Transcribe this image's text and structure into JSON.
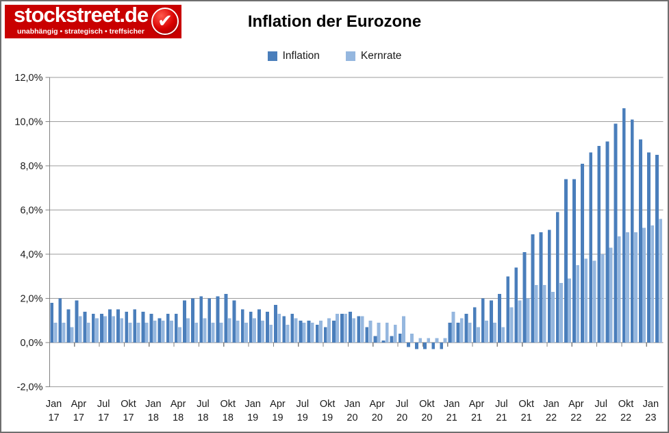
{
  "page": {
    "background": "#ffffff",
    "border_color": "#6e6e6e"
  },
  "logo": {
    "brand": "stockstreet.de",
    "tagline": "unabhängig • strategisch • treffsicher",
    "background_color": "#c90000",
    "check_icon": "✔"
  },
  "header": {
    "title": "Inflation der Eurozone"
  },
  "legend": [
    {
      "label": "Inflation",
      "color": "#4a7ebb"
    },
    {
      "label": "Kernrate",
      "color": "#95b7df"
    }
  ],
  "chart_data": {
    "type": "bar",
    "title": "Inflation der Eurozone",
    "categories": [
      "2017-01",
      "2017-02",
      "2017-03",
      "2017-04",
      "2017-05",
      "2017-06",
      "2017-07",
      "2017-08",
      "2017-09",
      "2017-10",
      "2017-11",
      "2017-12",
      "2018-01",
      "2018-02",
      "2018-03",
      "2018-04",
      "2018-05",
      "2018-06",
      "2018-07",
      "2018-08",
      "2018-09",
      "2018-10",
      "2018-11",
      "2018-12",
      "2019-01",
      "2019-02",
      "2019-03",
      "2019-04",
      "2019-05",
      "2019-06",
      "2019-07",
      "2019-08",
      "2019-09",
      "2019-10",
      "2019-11",
      "2019-12",
      "2020-01",
      "2020-02",
      "2020-03",
      "2020-04",
      "2020-05",
      "2020-06",
      "2020-07",
      "2020-08",
      "2020-09",
      "2020-10",
      "2020-11",
      "2020-12",
      "2021-01",
      "2021-02",
      "2021-03",
      "2021-04",
      "2021-05",
      "2021-06",
      "2021-07",
      "2021-08",
      "2021-09",
      "2021-10",
      "2021-11",
      "2021-12",
      "2022-01",
      "2022-02",
      "2022-03",
      "2022-04",
      "2022-05",
      "2022-06",
      "2022-07",
      "2022-08",
      "2022-09",
      "2022-10",
      "2022-11",
      "2022-12",
      "2023-01",
      "2023-02"
    ],
    "series": [
      {
        "name": "Inflation",
        "color": "#4a7ebb",
        "values": [
          1.8,
          2.0,
          1.5,
          1.9,
          1.4,
          1.3,
          1.3,
          1.5,
          1.5,
          1.4,
          1.5,
          1.4,
          1.3,
          1.1,
          1.3,
          1.3,
          1.9,
          2.0,
          2.1,
          2.0,
          2.1,
          2.2,
          1.9,
          1.5,
          1.4,
          1.5,
          1.4,
          1.7,
          1.2,
          1.3,
          1.0,
          1.0,
          0.8,
          0.7,
          1.0,
          1.3,
          1.4,
          1.2,
          0.7,
          0.3,
          0.1,
          0.3,
          0.4,
          -0.2,
          -0.3,
          -0.3,
          -0.3,
          -0.3,
          0.9,
          0.9,
          1.3,
          1.6,
          2.0,
          1.9,
          2.2,
          3.0,
          3.4,
          4.1,
          4.9,
          5.0,
          5.1,
          5.9,
          7.4,
          7.4,
          8.1,
          8.6,
          8.9,
          9.1,
          9.9,
          10.6,
          10.1,
          9.2,
          8.6,
          8.5
        ]
      },
      {
        "name": "Kernrate",
        "color": "#95b7df",
        "values": [
          0.9,
          0.9,
          0.7,
          1.2,
          0.9,
          1.1,
          1.2,
          1.2,
          1.1,
          0.9,
          0.9,
          0.9,
          1.0,
          1.0,
          1.0,
          0.7,
          1.1,
          0.9,
          1.1,
          0.9,
          0.9,
          1.1,
          1.0,
          0.9,
          1.1,
          1.0,
          0.8,
          1.3,
          0.8,
          1.1,
          0.9,
          0.9,
          1.0,
          1.1,
          1.3,
          1.3,
          1.1,
          1.2,
          1.0,
          0.9,
          0.9,
          0.8,
          1.2,
          0.4,
          0.2,
          0.2,
          0.2,
          0.2,
          1.4,
          1.1,
          0.9,
          0.7,
          1.0,
          0.9,
          0.7,
          1.6,
          1.9,
          2.0,
          2.6,
          2.6,
          2.3,
          2.7,
          2.9,
          3.5,
          3.8,
          3.7,
          4.0,
          4.3,
          4.8,
          5.0,
          5.0,
          5.2,
          5.3,
          5.6
        ]
      }
    ],
    "xlabel": "",
    "ylabel": "",
    "ylim": [
      -2,
      12
    ],
    "y_tick_step": 2,
    "y_tick_labels": [
      "12,0%",
      "10,0%",
      "8,0%",
      "6,0%",
      "4,0%",
      "2,0%",
      "0,0%",
      "-2,0%"
    ],
    "x_tick_labels": [
      {
        "month": "Jan",
        "year": "17"
      },
      {
        "month": "Apr",
        "year": "17"
      },
      {
        "month": "Jul",
        "year": "17"
      },
      {
        "month": "Okt",
        "year": "17"
      },
      {
        "month": "Jan",
        "year": "18"
      },
      {
        "month": "Apr",
        "year": "18"
      },
      {
        "month": "Jul",
        "year": "18"
      },
      {
        "month": "Okt",
        "year": "18"
      },
      {
        "month": "Jan",
        "year": "19"
      },
      {
        "month": "Apr",
        "year": "19"
      },
      {
        "month": "Jul",
        "year": "19"
      },
      {
        "month": "Okt",
        "year": "19"
      },
      {
        "month": "Jan",
        "year": "20"
      },
      {
        "month": "Apr",
        "year": "20"
      },
      {
        "month": "Jul",
        "year": "20"
      },
      {
        "month": "Okt",
        "year": "20"
      },
      {
        "month": "Jan",
        "year": "21"
      },
      {
        "month": "Apr",
        "year": "21"
      },
      {
        "month": "Jul",
        "year": "21"
      },
      {
        "month": "Okt",
        "year": "21"
      },
      {
        "month": "Jan",
        "year": "22"
      },
      {
        "month": "Apr",
        "year": "22"
      },
      {
        "month": "Jul",
        "year": "22"
      },
      {
        "month": "Okt",
        "year": "22"
      },
      {
        "month": "Jan",
        "year": "23"
      }
    ],
    "x_tick_every_months": 3,
    "grid": true,
    "legend_position": "top",
    "gridline_color": "#9b9b9b",
    "axis_color": "#808080",
    "tick_label_color": "#1a1a1a"
  }
}
